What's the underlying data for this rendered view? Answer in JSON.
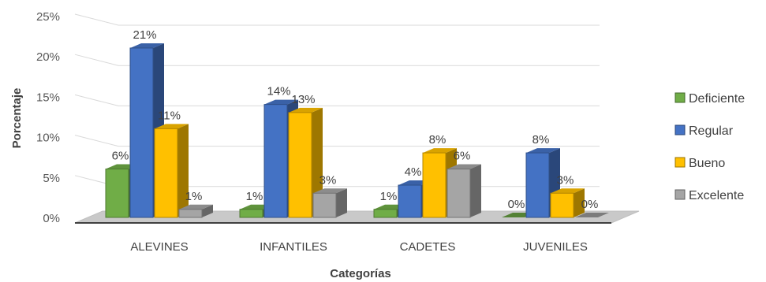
{
  "chart_data": {
    "type": "bar",
    "title": "",
    "xlabel": "Categorías",
    "ylabel": "Porcentaje",
    "categories": [
      "ALEVINES",
      "INFANTILES",
      "CADETES",
      "JUVENILES"
    ],
    "series": [
      {
        "name": "Deficiente",
        "values": [
          6,
          1,
          1,
          0
        ],
        "labels": [
          "6%",
          "1%",
          "1%",
          "0%"
        ],
        "color": "#70ad47"
      },
      {
        "name": "Regular",
        "values": [
          21,
          14,
          4,
          8
        ],
        "labels": [
          "21%",
          "14%",
          "4%",
          "8%"
        ],
        "color": "#4472c4"
      },
      {
        "name": "Bueno",
        "values": [
          11,
          13,
          8,
          3
        ],
        "labels": [
          "11%",
          "13%",
          "8%",
          "3%"
        ],
        "color": "#ffc000"
      },
      {
        "name": "Excelente",
        "values": [
          1,
          3,
          6,
          0
        ],
        "labels": [
          "1%",
          "3%",
          "6%",
          "0%"
        ],
        "color": "#a5a5a5"
      }
    ],
    "ylim": [
      0,
      25
    ],
    "yticks": [
      "0%",
      "5%",
      "10%",
      "15%",
      "20%",
      "25%"
    ],
    "grid": true,
    "legend": "right",
    "style": "3d-clustered-column"
  }
}
